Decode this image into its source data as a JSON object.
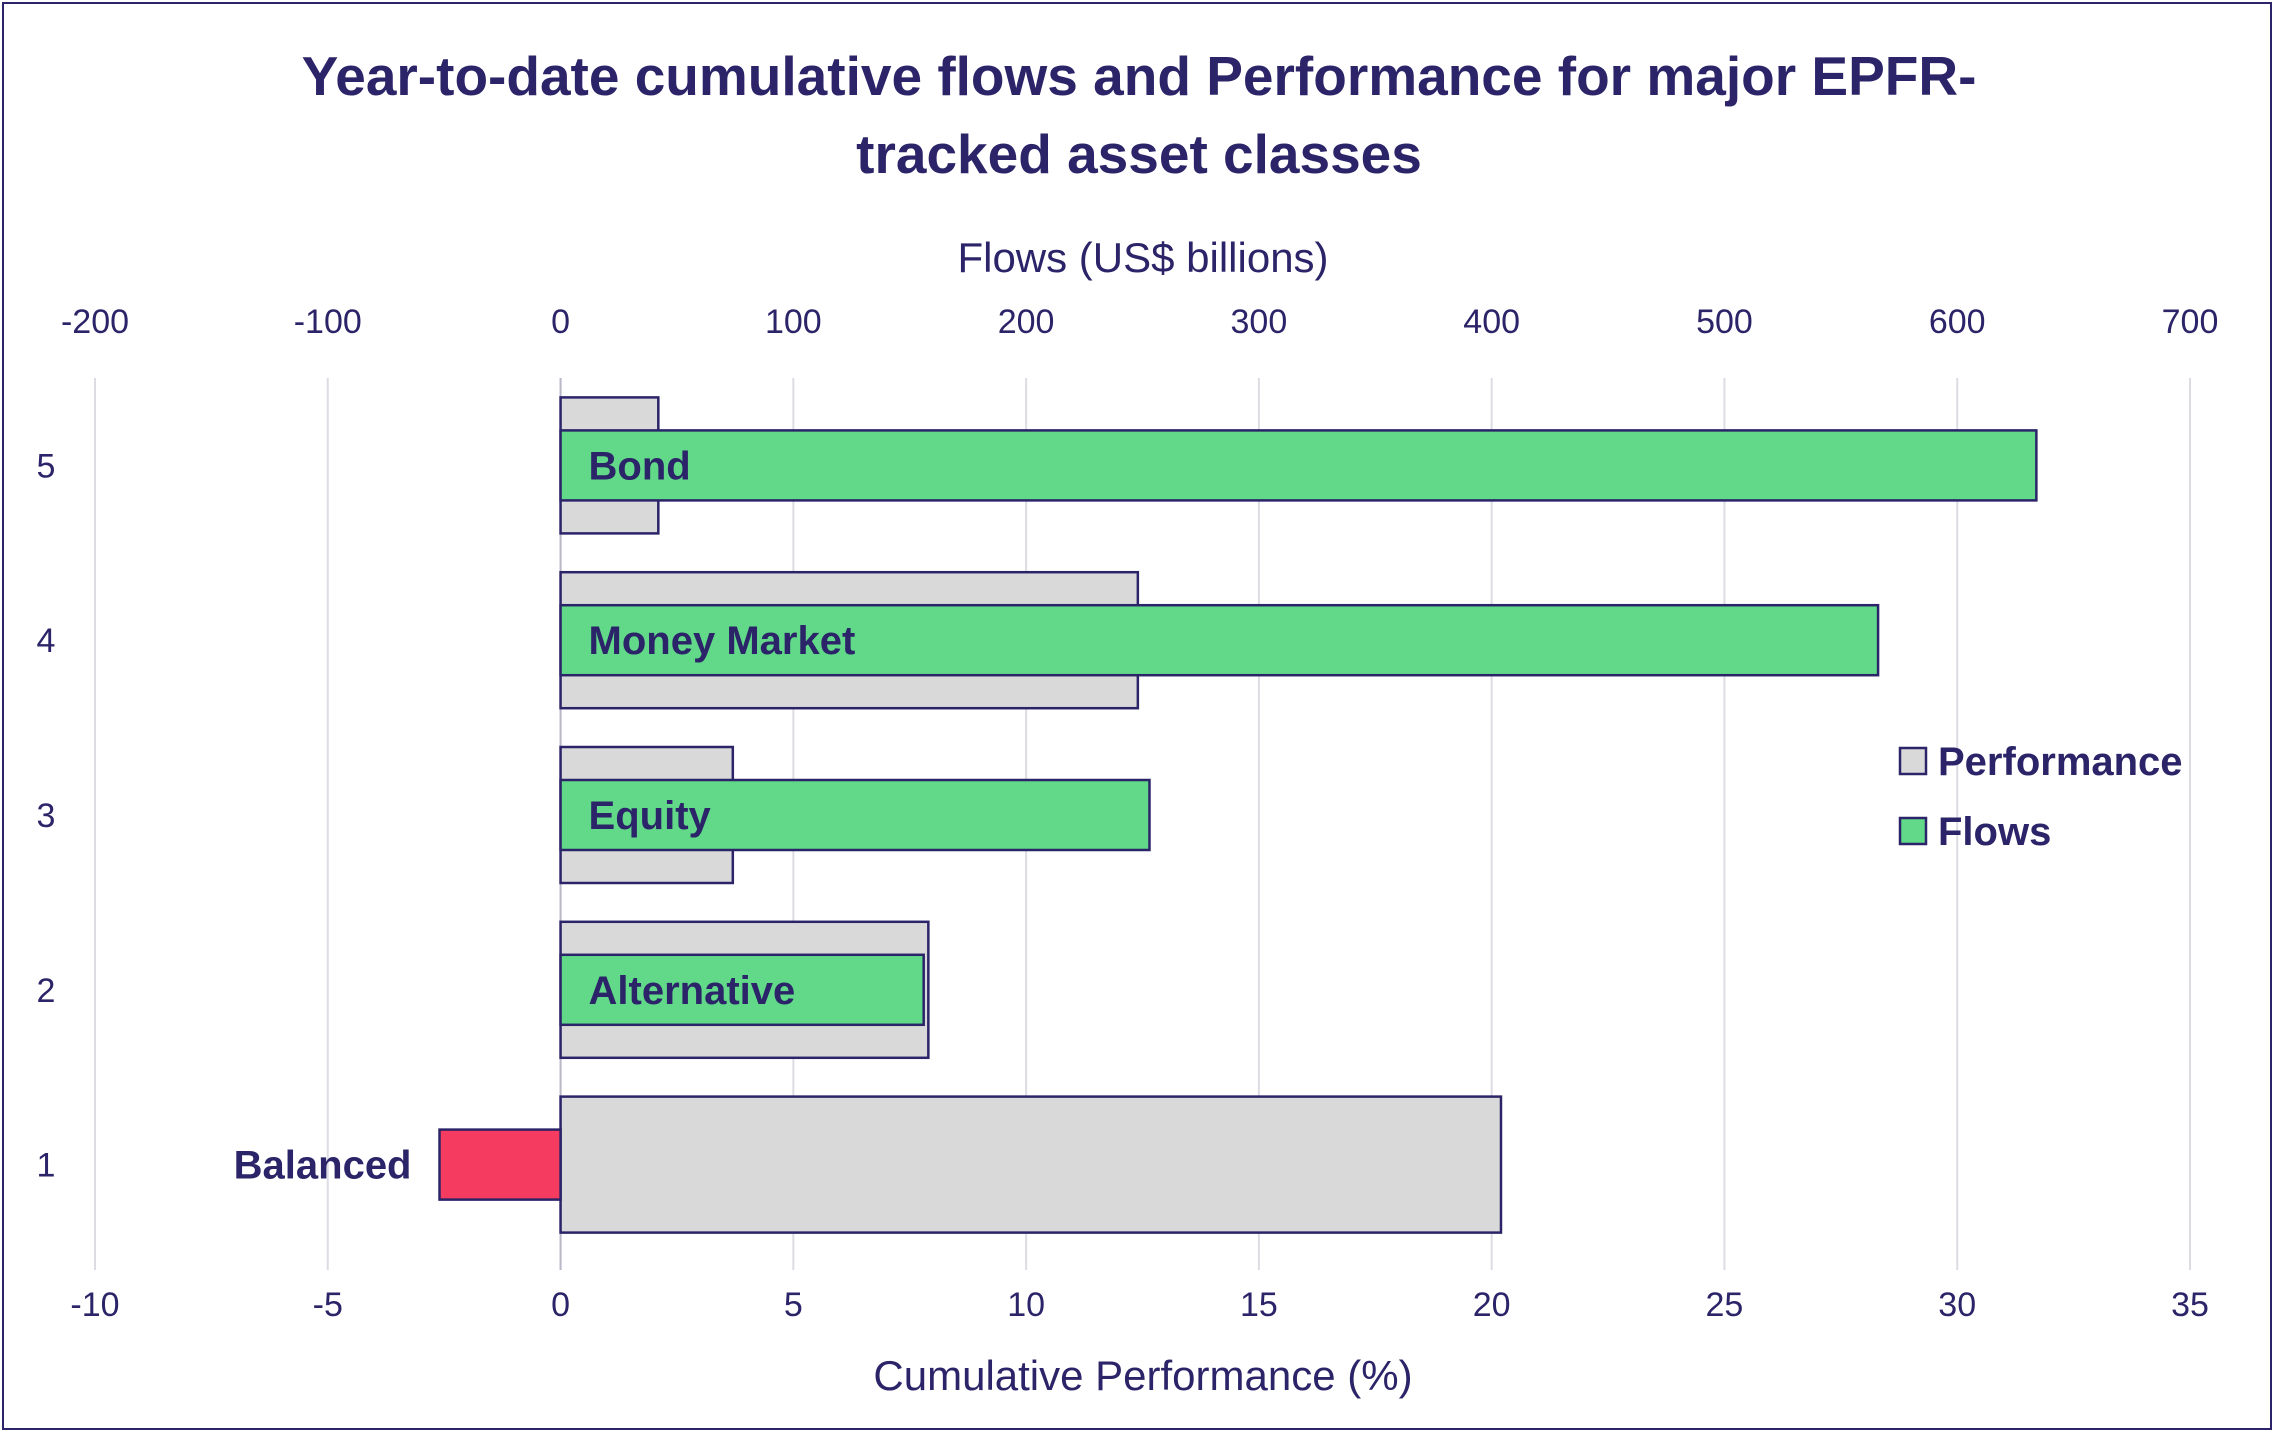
{
  "chart_data": {
    "type": "bar",
    "orientation": "horizontal",
    "title_lines": [
      "Year-to-date cumulative flows and Performance for major EPFR-",
      "tracked asset classes"
    ],
    "top_axis": {
      "label": "Flows (US$ billions)",
      "range": [
        -200,
        700
      ],
      "ticks": [
        "-200",
        "-100",
        "0",
        "100",
        "200",
        "300",
        "400",
        "500",
        "600",
        "700"
      ]
    },
    "bottom_axis": {
      "label": "Cumulative Performance (%)",
      "range": [
        -10,
        35
      ],
      "ticks": [
        "-10",
        "-5",
        "0",
        "5",
        "10",
        "15",
        "20",
        "25",
        "30",
        "35"
      ]
    },
    "y_ticks": [
      "1",
      "2",
      "3",
      "4",
      "5"
    ],
    "categories": [
      "Balanced",
      "Alternative",
      "Equity",
      "Money Market",
      "Bond"
    ],
    "series": [
      {
        "name": "Performance",
        "axis": "bottom",
        "color": "#d9d9d9",
        "values": [
          20.2,
          7.9,
          3.7,
          12.4,
          2.1
        ]
      },
      {
        "name": "Flows",
        "axis": "top",
        "color": "#61d989",
        "negative_color": "#f53b5f",
        "values": [
          -52,
          156,
          253,
          566,
          634
        ]
      }
    ],
    "legend": {
      "position": "right",
      "items": [
        "Performance",
        "Flows"
      ]
    },
    "grid": "vertical"
  }
}
